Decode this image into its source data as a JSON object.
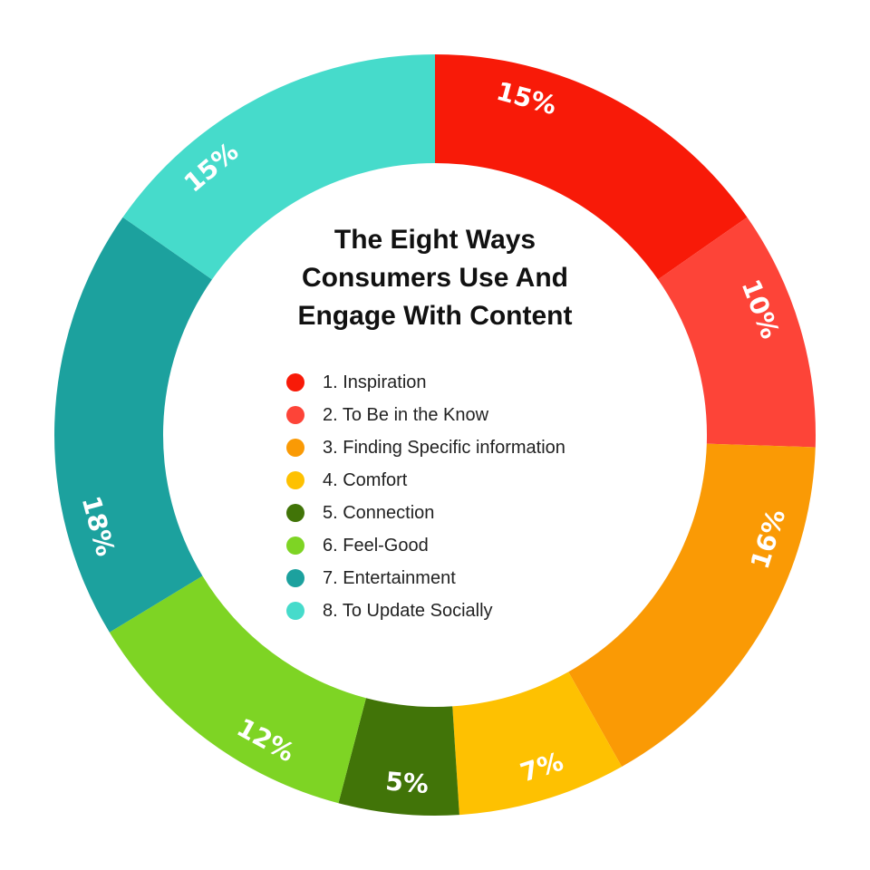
{
  "chart_data": {
    "type": "pie",
    "donut": true,
    "title_lines": [
      "The Eight Ways",
      "Consumers Use And",
      "Engage With Content"
    ],
    "categories": [
      "1. Inspiration",
      "2. To Be in the Know",
      "3. Finding Specific information",
      "4. Comfort",
      "5. Connection",
      "6. Feel-Good",
      "7. Entertainment",
      "8. To Update Socially"
    ],
    "values": [
      15,
      10,
      16,
      7,
      5,
      12,
      18,
      15
    ],
    "value_labels": [
      "15%",
      "10%",
      "16%",
      "7%",
      "5%",
      "12%",
      "18%",
      "15%"
    ],
    "colors": [
      "#f81a08",
      "#fd4438",
      "#fa9a05",
      "#fec101",
      "#417408",
      "#7ed424",
      "#1ca19e",
      "#46dbcb"
    ],
    "legend_position": "center",
    "start_angle": "top",
    "direction": "clockwise"
  }
}
